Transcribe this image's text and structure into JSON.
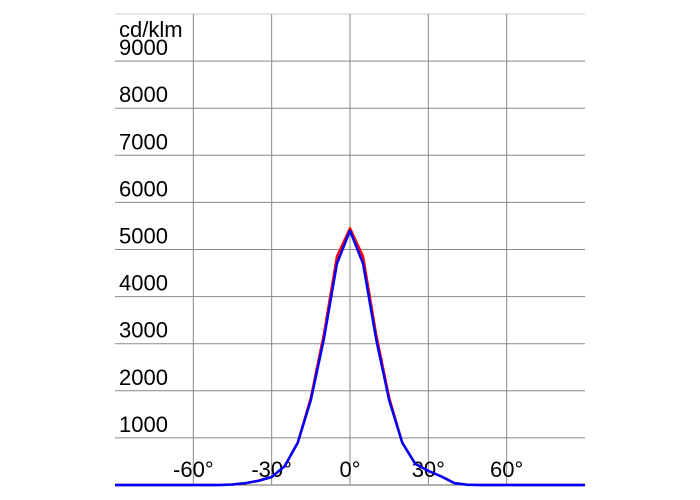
{
  "chart_data": {
    "type": "line",
    "y_label": "cd/klm",
    "x": [
      -90,
      -85,
      -80,
      -75,
      -70,
      -65,
      -60,
      -55,
      -50,
      -45,
      -40,
      -35,
      -30,
      -25,
      -20,
      -15,
      -10,
      -5,
      0,
      5,
      10,
      15,
      20,
      25,
      30,
      35,
      40,
      45,
      50,
      55,
      60,
      65,
      70,
      75,
      80,
      85,
      90
    ],
    "series": [
      {
        "color": "#ff0000",
        "values": [
          0,
          0,
          0,
          0,
          0,
          0,
          0,
          0,
          0,
          10,
          40,
          90,
          170,
          400,
          900,
          1850,
          3200,
          4850,
          5450,
          4850,
          3200,
          1850,
          900,
          450,
          300,
          180,
          40,
          5,
          0,
          0,
          0,
          0,
          0,
          0,
          0,
          0,
          0
        ]
      },
      {
        "color": "#0000ff",
        "values": [
          0,
          0,
          0,
          0,
          0,
          0,
          0,
          0,
          0,
          10,
          40,
          90,
          170,
          400,
          900,
          1800,
          3100,
          4700,
          5400,
          4700,
          3100,
          1800,
          900,
          450,
          300,
          180,
          40,
          5,
          0,
          0,
          0,
          0,
          0,
          0,
          0,
          0,
          0
        ]
      }
    ],
    "xlim": [
      -90,
      90
    ],
    "ylim": [
      0,
      10000
    ],
    "xticks": [
      {
        "value": -60,
        "label": "-60°"
      },
      {
        "value": -30,
        "label": "-30°"
      },
      {
        "value": 0,
        "label": "0°"
      },
      {
        "value": 30,
        "label": "30°"
      },
      {
        "value": 60,
        "label": "60°"
      }
    ],
    "yticks": [
      1000,
      2000,
      3000,
      4000,
      5000,
      6000,
      7000,
      8000,
      9000
    ],
    "grid": true
  }
}
